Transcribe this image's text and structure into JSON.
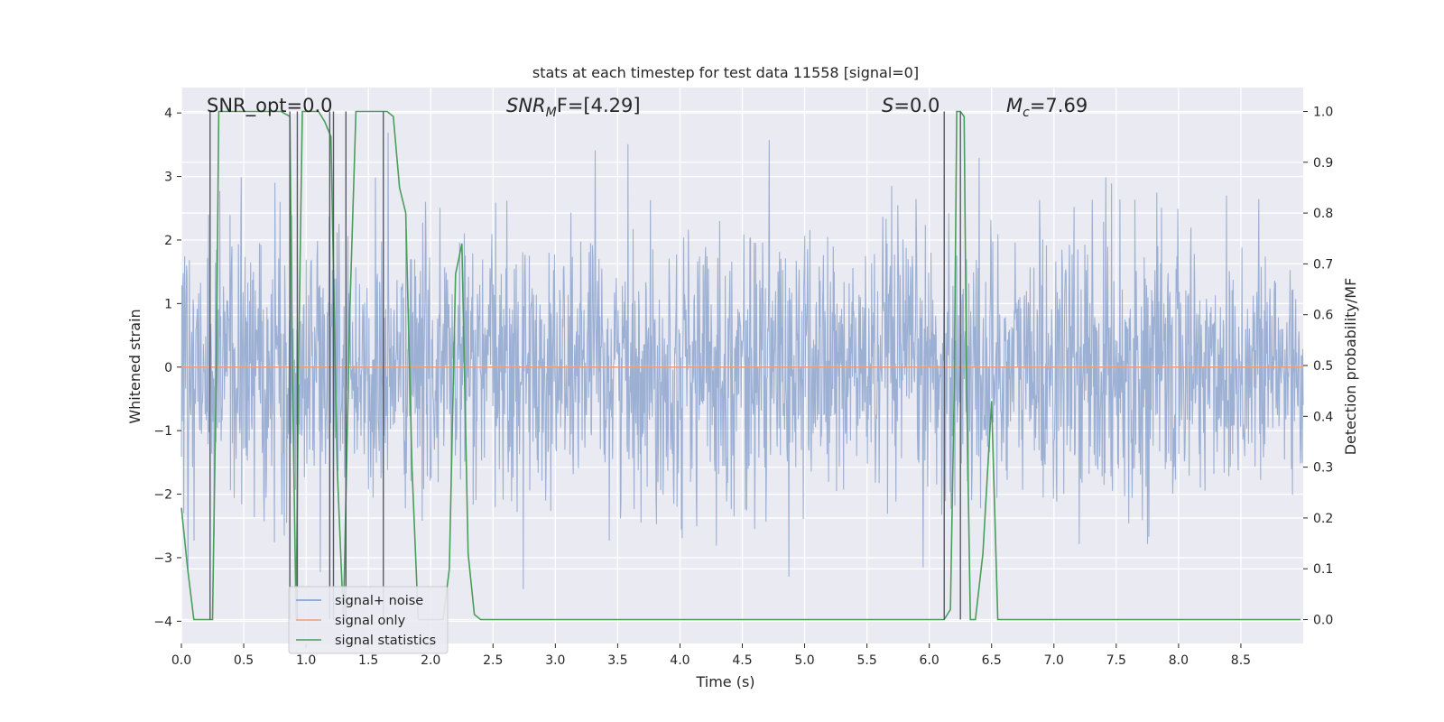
{
  "chart_data": {
    "type": "line",
    "title": "stats at each timestep for test data 11558 [signal=0]",
    "xlabel": "Time (s)",
    "ylabel_left": "Whitened strain",
    "ylabel_right": "Detection probability/MF",
    "xlim": [
      0,
      9.0
    ],
    "ylim_left": [
      -4.35,
      4.4
    ],
    "ylim_right": [
      -0.047,
      1.047
    ],
    "x_ticks": [
      "0.0",
      "0.5",
      "1.0",
      "1.5",
      "2.0",
      "2.5",
      "3.0",
      "3.5",
      "4.0",
      "4.5",
      "5.0",
      "5.5",
      "6.0",
      "6.5",
      "7.0",
      "7.5",
      "8.0",
      "8.5"
    ],
    "y_ticks_left": [
      "−4",
      "−3",
      "−2",
      "−1",
      "0",
      "1",
      "2",
      "3",
      "4"
    ],
    "y_ticks_right": [
      "0.0",
      "0.1",
      "0.2",
      "0.3",
      "0.4",
      "0.5",
      "0.6",
      "0.7",
      "0.8",
      "0.9",
      "1.0"
    ],
    "grid": true,
    "legend_position": "lower-left",
    "legend": [
      "signal+ noise",
      "signal only",
      "signal statistics"
    ],
    "colors": {
      "noise": "#7b97c8",
      "signal": "#e8a07f",
      "stats": "#4a9d5b",
      "vlines": "#555a66",
      "background": "#eaeaf2"
    },
    "annotations": {
      "snr_opt": "SNR_opt=0.0",
      "snr_mf_name": "SNR",
      "snr_mf_sub": "M",
      "snr_mf_rest": "F=[4.29]",
      "s_name": "S",
      "s_value": "=0.0",
      "mc_name": "M",
      "mc_sub": "c",
      "mc_value": "=7.69"
    },
    "series": [
      {
        "name": "signal+ noise",
        "axis": "left",
        "description": "whitened noise, approx range -3.8 to 3.9"
      },
      {
        "name": "signal only",
        "axis": "left",
        "x": [
          0,
          9.0
        ],
        "y": [
          0,
          0
        ]
      },
      {
        "name": "signal statistics",
        "axis": "right",
        "x": [
          0,
          0.05,
          0.1,
          0.2,
          0.25,
          0.28,
          0.3,
          0.32,
          0.35,
          0.4,
          0.6,
          0.8,
          0.87,
          0.89,
          0.92,
          0.94,
          0.97,
          1.0,
          1.02,
          1.05,
          1.1,
          1.15,
          1.2,
          1.25,
          1.3,
          1.35,
          1.4,
          1.45,
          1.5,
          1.55,
          1.6,
          1.65,
          1.7,
          1.75,
          1.8,
          1.85,
          1.9,
          2.0,
          2.1,
          2.15,
          2.2,
          2.25,
          2.3,
          2.35,
          2.4,
          2.5,
          2.6,
          3.0,
          4.0,
          5.0,
          5.5,
          6.0,
          6.07,
          6.12,
          6.17,
          6.2,
          6.22,
          6.25,
          6.28,
          6.3,
          6.33,
          6.37,
          6.43,
          6.5,
          6.55,
          6.6,
          7.0,
          8.0,
          8.9,
          8.98
        ],
        "y": [
          0.22,
          0.1,
          0.0,
          0.0,
          0.0,
          0.5,
          1.0,
          1.0,
          1.0,
          1.0,
          1.0,
          1.0,
          0.99,
          0.5,
          0.0,
          0.5,
          1.0,
          1.0,
          1.0,
          1.0,
          1.0,
          0.98,
          0.95,
          0.3,
          0.0,
          0.6,
          1.0,
          1.0,
          1.0,
          1.0,
          1.0,
          1.0,
          0.99,
          0.85,
          0.8,
          0.3,
          0.0,
          0.0,
          0.0,
          0.1,
          0.68,
          0.74,
          0.13,
          0.01,
          0.0,
          0.0,
          0.0,
          0.0,
          0.0,
          0.0,
          0.0,
          0.0,
          0.0,
          0.0,
          0.02,
          0.45,
          1.0,
          1.0,
          0.99,
          0.45,
          0.0,
          0.0,
          0.13,
          0.43,
          0.0,
          0.0,
          0.0,
          0.0,
          0.0,
          0.0
        ]
      }
    ],
    "vlines_x": [
      0.23,
      0.87,
      0.93,
      1.19,
      1.22,
      1.32,
      1.62,
      6.12,
      6.25
    ]
  }
}
